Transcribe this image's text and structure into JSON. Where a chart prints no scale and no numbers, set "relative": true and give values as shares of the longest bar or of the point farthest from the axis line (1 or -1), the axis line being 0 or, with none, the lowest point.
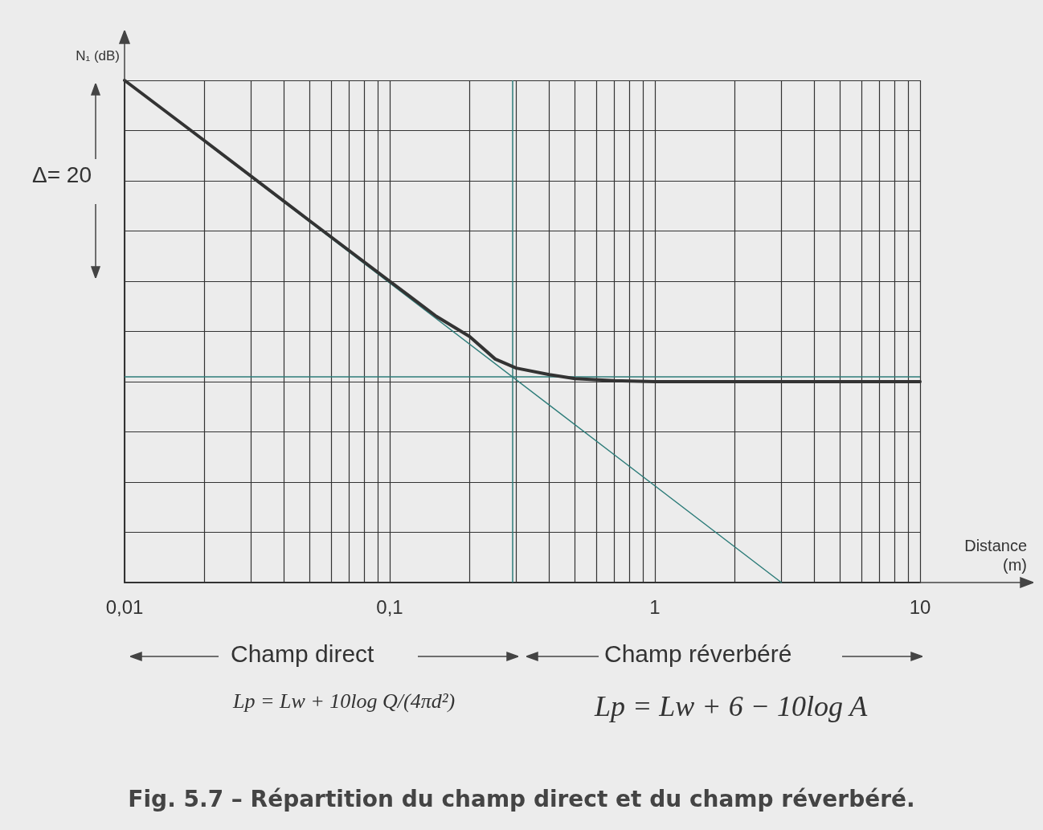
{
  "chart_data": {
    "type": "line",
    "title": "Fig. 5.7 – Répartition du champ direct et du champ réverbéré.",
    "xlabel": "Distance (m)",
    "ylabel": "N₁ (dB)",
    "annotations": [
      "Δ= 20",
      "Champ direct",
      "Champ réverbéré",
      "Lp = Lw + 10log Q/(4πd²)",
      "Lp = Lw + 6 − 10log A"
    ],
    "relative": true,
    "log": "x",
    "grid": true,
    "marker": "none",
    "line_style": "solid",
    "xlim": [
      0.01,
      10
    ],
    "xticks": [
      {
        "value": 0.01,
        "label": "0,01"
      },
      {
        "value": 0.02,
        "label": null
      },
      {
        "value": 0.03,
        "label": null
      },
      {
        "value": 0.04,
        "label": null
      },
      {
        "value": 0.05,
        "label": null
      },
      {
        "value": 0.06,
        "label": null
      },
      {
        "value": 0.07,
        "label": null
      },
      {
        "value": 0.08,
        "label": null
      },
      {
        "value": 0.09,
        "label": null
      },
      {
        "value": 0.1,
        "label": "0,1"
      },
      {
        "value": 0.2,
        "label": null
      },
      {
        "value": 0.3,
        "label": null
      },
      {
        "value": 0.4,
        "label": null
      },
      {
        "value": 0.5,
        "label": null
      },
      {
        "value": 0.6,
        "label": null
      },
      {
        "value": 0.7,
        "label": null
      },
      {
        "value": 0.8,
        "label": null
      },
      {
        "value": 0.9,
        "label": null
      },
      1,
      {
        "value": 2,
        "label": null
      },
      {
        "value": 3,
        "label": null
      },
      {
        "value": 4,
        "label": null
      },
      {
        "value": 5,
        "label": null
      },
      {
        "value": 6,
        "label": null
      },
      {
        "value": 7,
        "label": null
      },
      {
        "value": 8,
        "label": null
      },
      {
        "value": 9,
        "label": null
      },
      10
    ],
    "ref_lines": [
      {
        "axis": "y",
        "value": 0.41,
        "color": "#2e7d7a"
      },
      {
        "axis": "x",
        "value": 0.29,
        "color": "#2e7d7a"
      }
    ],
    "series": [
      {
        "color": "#333333",
        "x": [
          0.01,
          0.02,
          0.05,
          0.1,
          0.15,
          0.2,
          0.25,
          0.3,
          0.4,
          0.5,
          0.7,
          1,
          2,
          5,
          10
        ],
        "values": [
          1.0,
          0.88,
          0.72,
          0.6,
          0.53,
          0.49,
          0.445,
          0.427,
          0.414,
          0.406,
          0.402,
          0.4,
          0.4,
          0.4,
          0.4
        ]
      },
      {
        "color": "#2e7d7a",
        "x": [
          0.01,
          3
        ],
        "values": [
          1.0,
          0
        ]
      }
    ]
  }
}
